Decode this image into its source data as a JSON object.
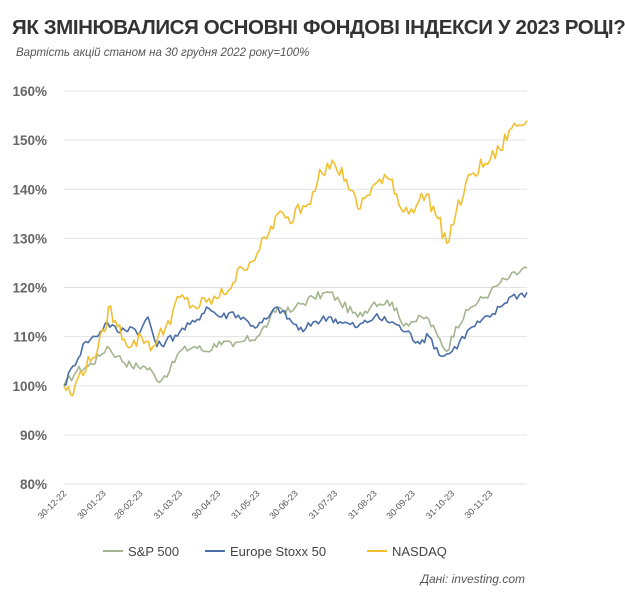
{
  "header": {
    "title": "ЯК ЗМІНЮВАЛИСЯ ОСНОВНІ ФОНДОВІ ІНДЕКСИ У 2023 РОЦІ?",
    "subtitle": "Вартість акцій станом на 30 грудня 2022 року=100%"
  },
  "footer": {
    "source": "Дані: investing.com"
  },
  "chart_data": {
    "type": "line",
    "title": "ЯК ЗМІНЮВАЛИСЯ ОСНОВНІ ФОНДОВІ ІНДЕКСИ У 2023 РОЦІ?",
    "subtitle": "Вартість акцій станом на 30 грудня 2022 року=100%",
    "xlabel": "",
    "ylabel": "",
    "ylim": [
      80,
      160
    ],
    "yticks": [
      "80%",
      "90%",
      "100%",
      "110%",
      "120%",
      "130%",
      "140%",
      "150%",
      "160%"
    ],
    "xticks": [
      "30-12-22",
      "30-01-23",
      "28-02-23",
      "31-03-23",
      "30-04-23",
      "31-05-23",
      "30-06-23",
      "31-07-23",
      "31-08-23",
      "30-09-23",
      "31-10-23",
      "30-11-23"
    ],
    "grid": "horizontal",
    "legend_position": "bottom",
    "source": "Дані: investing.com",
    "series": [
      {
        "name": "S&P 500",
        "color": "#a5b58f",
        "points": [
          [
            "2022-12-30",
            100
          ],
          [
            "2023-01-09",
            103
          ],
          [
            "2023-01-18",
            104
          ],
          [
            "2023-01-27",
            106
          ],
          [
            "2023-02-02",
            108
          ],
          [
            "2023-02-10",
            106
          ],
          [
            "2023-02-21",
            104
          ],
          [
            "2023-03-02",
            104
          ],
          [
            "2023-03-09",
            103
          ],
          [
            "2023-03-13",
            101
          ],
          [
            "2023-03-23",
            103
          ],
          [
            "2023-03-31",
            107
          ],
          [
            "2023-04-12",
            108
          ],
          [
            "2023-04-21",
            107
          ],
          [
            "2023-05-01",
            109
          ],
          [
            "2023-05-12",
            108
          ],
          [
            "2023-05-19",
            109
          ],
          [
            "2023-05-31",
            110
          ],
          [
            "2023-06-09",
            113
          ],
          [
            "2023-06-16",
            116
          ],
          [
            "2023-06-26",
            115
          ],
          [
            "2023-06-30",
            116
          ],
          [
            "2023-07-14",
            118
          ],
          [
            "2023-07-27",
            119
          ],
          [
            "2023-08-04",
            117
          ],
          [
            "2023-08-18",
            114
          ],
          [
            "2023-08-31",
            117
          ],
          [
            "2023-09-14",
            117
          ],
          [
            "2023-09-21",
            113
          ],
          [
            "2023-09-29",
            113
          ],
          [
            "2023-10-11",
            114
          ],
          [
            "2023-10-20",
            110
          ],
          [
            "2023-10-27",
            107
          ],
          [
            "2023-11-03",
            112
          ],
          [
            "2023-11-15",
            116
          ],
          [
            "2023-11-30",
            119
          ],
          [
            "2023-12-08",
            121
          ],
          [
            "2023-12-15",
            122
          ],
          [
            "2023-12-29",
            124
          ]
        ]
      },
      {
        "name": "Europe Stoxx 50",
        "color": "#4a6ea8",
        "points": [
          [
            "2022-12-30",
            100
          ],
          [
            "2023-01-06",
            104
          ],
          [
            "2023-01-16",
            109
          ],
          [
            "2023-01-24",
            110
          ],
          [
            "2023-02-02",
            113
          ],
          [
            "2023-02-10",
            111
          ],
          [
            "2023-02-20",
            112
          ],
          [
            "2023-02-28",
            111
          ],
          [
            "2023-03-06",
            114
          ],
          [
            "2023-03-13",
            108
          ],
          [
            "2023-03-20",
            109
          ],
          [
            "2023-03-31",
            111
          ],
          [
            "2023-04-12",
            113
          ],
          [
            "2023-04-21",
            116
          ],
          [
            "2023-05-03",
            114
          ],
          [
            "2023-05-12",
            115
          ],
          [
            "2023-05-24",
            113
          ],
          [
            "2023-05-31",
            112
          ],
          [
            "2023-06-09",
            114
          ],
          [
            "2023-06-16",
            116
          ],
          [
            "2023-06-27",
            113
          ],
          [
            "2023-07-06",
            111
          ],
          [
            "2023-07-14",
            113
          ],
          [
            "2023-07-28",
            114
          ],
          [
            "2023-08-04",
            113
          ],
          [
            "2023-08-18",
            112
          ],
          [
            "2023-08-31",
            114
          ],
          [
            "2023-09-14",
            113
          ],
          [
            "2023-09-25",
            111
          ],
          [
            "2023-10-04",
            109
          ],
          [
            "2023-10-13",
            110
          ],
          [
            "2023-10-23",
            106
          ],
          [
            "2023-10-31",
            107
          ],
          [
            "2023-11-06",
            109
          ],
          [
            "2023-11-16",
            112
          ],
          [
            "2023-11-30",
            114
          ],
          [
            "2023-12-08",
            116
          ],
          [
            "2023-12-15",
            118
          ],
          [
            "2023-12-29",
            119
          ]
        ]
      },
      {
        "name": "NASDAQ",
        "color": "#f0c030",
        "points": [
          [
            "2022-12-30",
            100
          ],
          [
            "2023-01-06",
            98
          ],
          [
            "2023-01-12",
            103
          ],
          [
            "2023-01-20",
            105
          ],
          [
            "2023-01-31",
            111
          ],
          [
            "2023-02-03",
            116
          ],
          [
            "2023-02-10",
            112
          ],
          [
            "2023-02-21",
            108
          ],
          [
            "2023-03-01",
            110
          ],
          [
            "2023-03-10",
            108
          ],
          [
            "2023-03-20",
            112
          ],
          [
            "2023-03-31",
            118
          ],
          [
            "2023-04-12",
            116
          ],
          [
            "2023-04-21",
            117
          ],
          [
            "2023-05-01",
            118
          ],
          [
            "2023-05-12",
            121
          ],
          [
            "2023-05-19",
            124
          ],
          [
            "2023-05-31",
            127
          ],
          [
            "2023-06-09",
            131
          ],
          [
            "2023-06-16",
            135
          ],
          [
            "2023-06-26",
            133
          ],
          [
            "2023-06-30",
            136
          ],
          [
            "2023-07-10",
            137
          ],
          [
            "2023-07-19",
            144
          ],
          [
            "2023-07-31",
            145
          ],
          [
            "2023-08-09",
            142
          ],
          [
            "2023-08-18",
            136
          ],
          [
            "2023-08-31",
            141
          ],
          [
            "2023-09-14",
            142
          ],
          [
            "2023-09-21",
            136
          ],
          [
            "2023-09-29",
            136
          ],
          [
            "2023-10-11",
            139
          ],
          [
            "2023-10-20",
            134
          ],
          [
            "2023-10-27",
            129
          ],
          [
            "2023-11-03",
            135
          ],
          [
            "2023-11-15",
            143
          ],
          [
            "2023-11-30",
            146
          ],
          [
            "2023-12-08",
            148
          ],
          [
            "2023-12-15",
            152
          ],
          [
            "2023-12-29",
            154
          ]
        ]
      }
    ]
  }
}
